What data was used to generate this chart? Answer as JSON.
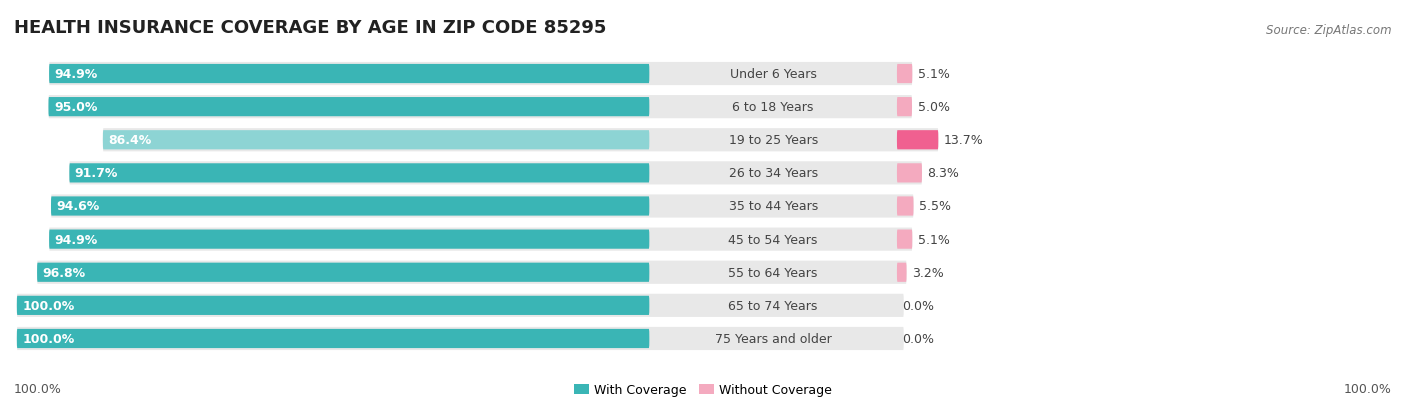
{
  "title": "HEALTH INSURANCE COVERAGE BY AGE IN ZIP CODE 85295",
  "source": "Source: ZipAtlas.com",
  "categories": [
    "Under 6 Years",
    "6 to 18 Years",
    "19 to 25 Years",
    "26 to 34 Years",
    "35 to 44 Years",
    "45 to 54 Years",
    "55 to 64 Years",
    "65 to 74 Years",
    "75 Years and older"
  ],
  "with_coverage": [
    94.9,
    95.0,
    86.4,
    91.7,
    94.6,
    94.9,
    96.8,
    100.0,
    100.0
  ],
  "without_coverage": [
    5.1,
    5.0,
    13.7,
    8.3,
    5.5,
    5.1,
    3.2,
    0.0,
    0.0
  ],
  "color_with_dark": "#3ab5b5",
  "color_with_light": "#8dd4d4",
  "color_without_dark": "#f06090",
  "color_without_light": "#f4aabf",
  "bg_bar": "#e8e8e8",
  "title_fontsize": 13,
  "bar_label_fontsize": 9,
  "cat_label_fontsize": 9,
  "val_label_fontsize": 9,
  "legend_label_with": "With Coverage",
  "legend_label_without": "Without Coverage",
  "axis_label_left": "100.0%",
  "axis_label_right": "100.0%"
}
